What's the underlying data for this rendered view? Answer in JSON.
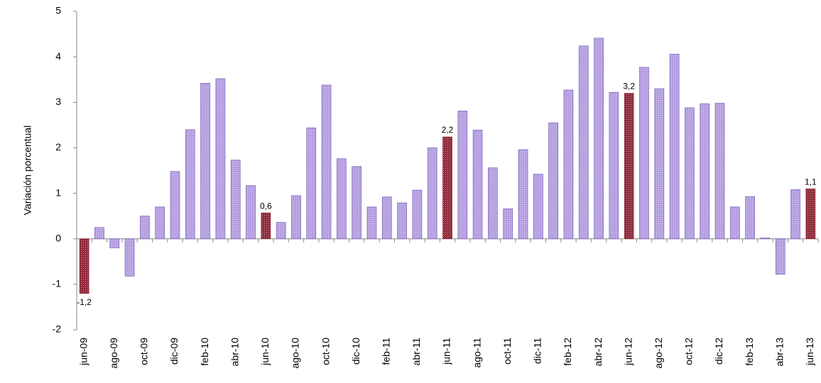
{
  "chart_data": {
    "type": "bar",
    "y_label": "Variación porcentual",
    "categories": [
      "jun-09",
      null,
      "ago-09",
      null,
      "oct-09",
      null,
      "dic-09",
      null,
      "feb-10",
      null,
      "abr-10",
      null,
      "jun-10",
      null,
      "ago-10",
      null,
      "oct-10",
      null,
      "dic-10",
      null,
      "feb-11",
      null,
      "abr-11",
      null,
      "jun-11",
      null,
      "ago-11",
      null,
      "oct-11",
      null,
      "dic-11",
      null,
      "feb-12",
      null,
      "abr-12",
      null,
      "jun-12",
      null,
      "ago-12",
      null,
      "oct-12",
      null,
      "dic-12",
      null,
      "feb-13",
      null,
      "abr-13",
      null,
      "jun-13"
    ],
    "values": [
      -1.2,
      0.25,
      -0.2,
      -0.82,
      0.5,
      0.7,
      1.48,
      2.4,
      3.42,
      3.52,
      1.73,
      1.17,
      0.57,
      0.36,
      0.95,
      2.44,
      3.38,
      1.76,
      1.59,
      0.7,
      0.92,
      0.79,
      1.07,
      2.0,
      2.24,
      2.81,
      2.39,
      1.56,
      0.66,
      1.96,
      1.42,
      2.55,
      3.27,
      4.24,
      4.41,
      3.22,
      3.2,
      3.77,
      3.3,
      4.06,
      2.88,
      2.97,
      2.98,
      0.7,
      0.93,
      0.02,
      -0.78,
      1.08,
      1.1
    ],
    "value_labels": [
      "-1,2",
      null,
      null,
      null,
      null,
      null,
      null,
      null,
      null,
      null,
      null,
      null,
      "0,6",
      null,
      null,
      null,
      null,
      null,
      null,
      null,
      null,
      null,
      null,
      null,
      "2,2",
      null,
      null,
      null,
      null,
      null,
      null,
      null,
      null,
      null,
      null,
      null,
      "3,2",
      null,
      null,
      null,
      null,
      null,
      null,
      null,
      null,
      null,
      null,
      null,
      "1,1"
    ],
    "color": "#b49ee0",
    "highlight_color": "#8e2a3a",
    "ylim": [
      -2,
      5
    ],
    "yticks": [
      -2,
      -1,
      0,
      1,
      2,
      3,
      4,
      5
    ],
    "grid": false
  }
}
